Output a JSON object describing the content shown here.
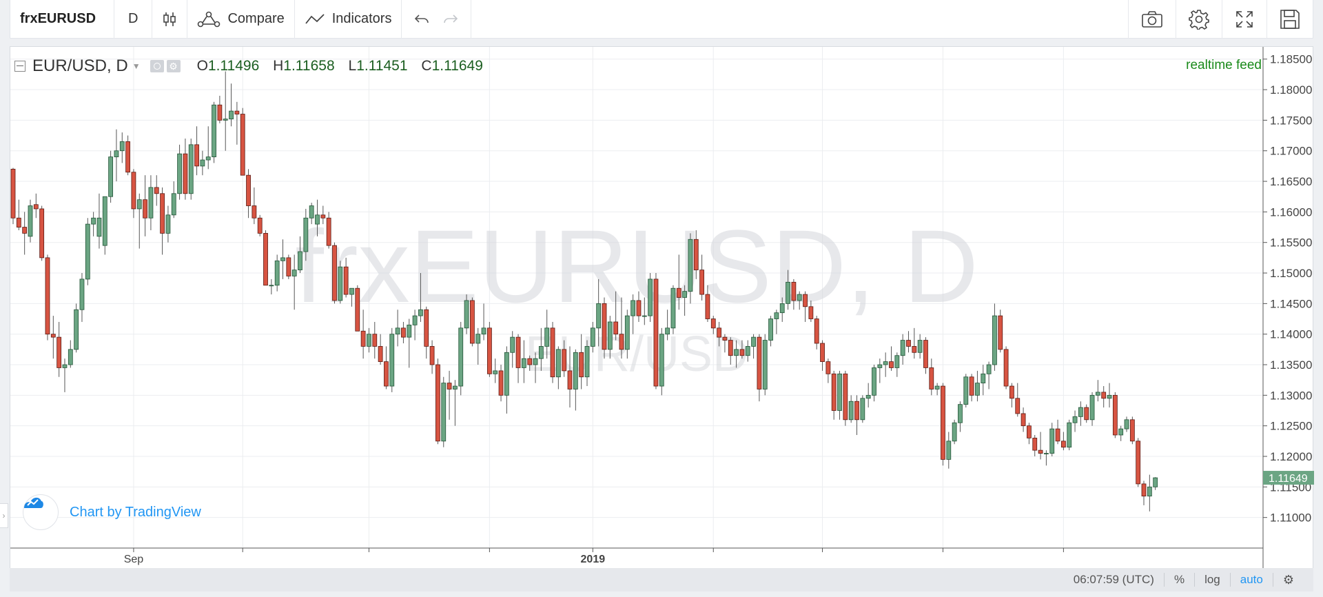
{
  "toolbar": {
    "symbol": "frxEURUSD",
    "interval": "D",
    "compare_label": "Compare",
    "indicators_label": "Indicators",
    "icons": [
      "candles-icon",
      "compare-icon",
      "indicators-icon",
      "undo-icon",
      "redo-icon",
      "camera-icon",
      "gear-icon",
      "fullscreen-icon",
      "save-icon"
    ]
  },
  "legend": {
    "title": "EUR/USD, D",
    "o_label": "O",
    "o_value": "1.11496",
    "h_label": "H",
    "h_value": "1.11658",
    "l_label": "L",
    "l_value": "1.11451",
    "c_label": "C",
    "c_value": "1.11649",
    "feed": "realtime feed"
  },
  "watermark": {
    "main": "frxEURUSD, D",
    "sub": "EUR/USD"
  },
  "brand": {
    "label": "Chart by TradingView"
  },
  "status": {
    "time": "06:07:59 (UTC)",
    "percent": "%",
    "log": "log",
    "auto": "auto"
  },
  "colors": {
    "up": "#6ba583",
    "down": "#d75442",
    "up_border": "#225437",
    "down_border": "#5b1a13",
    "price_tag": "#6ba583",
    "grid": "#ebedf0"
  },
  "chart_data": {
    "type": "candlestick",
    "title": "EUR/USD, D",
    "last_price_label": "1.11649",
    "ylim": [
      1.105,
      1.187
    ],
    "y_ticks": [
      "1.18500",
      "1.18000",
      "1.17500",
      "1.17000",
      "1.16500",
      "1.16000",
      "1.15500",
      "1.15000",
      "1.14500",
      "1.14000",
      "1.13500",
      "1.13000",
      "1.12500",
      "1.12000",
      "1.11500",
      "1.11000"
    ],
    "x_labels": [
      {
        "label": "Sep",
        "index": 21,
        "bold": false
      },
      {
        "label": "2019",
        "index": 101,
        "bold": true
      }
    ],
    "x_tick_indices": [
      21,
      40,
      62,
      83,
      101,
      122,
      141,
      162,
      183
    ],
    "ohlc": [
      [
        1.167,
        1.1672,
        1.158,
        1.159
      ],
      [
        1.159,
        1.162,
        1.157,
        1.1575
      ],
      [
        1.1575,
        1.16,
        1.153,
        1.1565
      ],
      [
        1.156,
        1.162,
        1.155,
        1.161
      ],
      [
        1.1612,
        1.163,
        1.159,
        1.1605
      ],
      [
        1.1605,
        1.161,
        1.152,
        1.1525
      ],
      [
        1.1525,
        1.153,
        1.139,
        1.14
      ],
      [
        1.14,
        1.143,
        1.136,
        1.1395
      ],
      [
        1.1395,
        1.142,
        1.133,
        1.1345
      ],
      [
        1.1345,
        1.136,
        1.1305,
        1.135
      ],
      [
        1.135,
        1.139,
        1.1345,
        1.1375
      ],
      [
        1.1375,
        1.145,
        1.137,
        1.144
      ],
      [
        1.144,
        1.15,
        1.142,
        1.149
      ],
      [
        1.149,
        1.159,
        1.148,
        1.158
      ],
      [
        1.158,
        1.16,
        1.156,
        1.159
      ],
      [
        1.156,
        1.163,
        1.154,
        1.159
      ],
      [
        1.1545,
        1.162,
        1.153,
        1.1625
      ],
      [
        1.1625,
        1.17,
        1.1615,
        1.169
      ],
      [
        1.169,
        1.1735,
        1.165,
        1.17
      ],
      [
        1.17,
        1.173,
        1.168,
        1.1715
      ],
      [
        1.1715,
        1.1725,
        1.166,
        1.1665
      ],
      [
        1.1665,
        1.167,
        1.159,
        1.1605
      ],
      [
        1.1605,
        1.163,
        1.154,
        1.162
      ],
      [
        1.162,
        1.166,
        1.156,
        1.159
      ],
      [
        1.159,
        1.166,
        1.157,
        1.164
      ],
      [
        1.164,
        1.166,
        1.161,
        1.163
      ],
      [
        1.163,
        1.164,
        1.153,
        1.1565
      ],
      [
        1.1565,
        1.161,
        1.155,
        1.1595
      ],
      [
        1.1595,
        1.165,
        1.159,
        1.163
      ],
      [
        1.163,
        1.171,
        1.162,
        1.1695
      ],
      [
        1.1695,
        1.172,
        1.162,
        1.163
      ],
      [
        1.163,
        1.172,
        1.162,
        1.171
      ],
      [
        1.171,
        1.174,
        1.166,
        1.1675
      ],
      [
        1.1675,
        1.17,
        1.166,
        1.1685
      ],
      [
        1.1685,
        1.174,
        1.167,
        1.169
      ],
      [
        1.169,
        1.178,
        1.168,
        1.1775
      ],
      [
        1.1775,
        1.179,
        1.1745,
        1.175
      ],
      [
        1.175,
        1.183,
        1.17,
        1.1752
      ],
      [
        1.1752,
        1.181,
        1.174,
        1.1765
      ],
      [
        1.1765,
        1.178,
        1.171,
        1.176
      ],
      [
        1.176,
        1.177,
        1.166,
        1.166
      ],
      [
        1.166,
        1.167,
        1.159,
        1.161
      ],
      [
        1.161,
        1.164,
        1.158,
        1.159
      ],
      [
        1.159,
        1.1595,
        1.156,
        1.1565
      ],
      [
        1.1565,
        1.157,
        1.148,
        1.148
      ],
      [
        1.148,
        1.149,
        1.1465,
        1.148
      ],
      [
        1.148,
        1.153,
        1.147,
        1.152
      ],
      [
        1.152,
        1.1555,
        1.149,
        1.1525
      ],
      [
        1.1525,
        1.153,
        1.149,
        1.1495
      ],
      [
        1.1495,
        1.153,
        1.144,
        1.1505
      ],
      [
        1.1505,
        1.156,
        1.15,
        1.1535
      ],
      [
        1.1535,
        1.1605,
        1.152,
        1.159
      ],
      [
        1.159,
        1.1615,
        1.158,
        1.161
      ],
      [
        1.158,
        1.162,
        1.156,
        1.1595
      ],
      [
        1.1595,
        1.161,
        1.158,
        1.159
      ],
      [
        1.159,
        1.16,
        1.154,
        1.1545
      ],
      [
        1.1545,
        1.155,
        1.145,
        1.1455
      ],
      [
        1.1455,
        1.152,
        1.145,
        1.151
      ],
      [
        1.151,
        1.1525,
        1.146,
        1.1465
      ],
      [
        1.1465,
        1.147,
        1.1445,
        1.1475
      ],
      [
        1.1475,
        1.148,
        1.1405,
        1.1405
      ],
      [
        1.1405,
        1.144,
        1.136,
        1.138
      ],
      [
        1.138,
        1.141,
        1.137,
        1.14
      ],
      [
        1.14,
        1.142,
        1.136,
        1.138
      ],
      [
        1.138,
        1.14,
        1.135,
        1.1355
      ],
      [
        1.1355,
        1.138,
        1.131,
        1.1315
      ],
      [
        1.1315,
        1.141,
        1.1305,
        1.14
      ],
      [
        1.14,
        1.144,
        1.138,
        1.141
      ],
      [
        1.141,
        1.142,
        1.1385,
        1.1395
      ],
      [
        1.1395,
        1.1425,
        1.1345,
        1.1415
      ],
      [
        1.1415,
        1.144,
        1.139,
        1.143
      ],
      [
        1.143,
        1.15,
        1.142,
        1.144
      ],
      [
        1.144,
        1.1445,
        1.136,
        1.138
      ],
      [
        1.138,
        1.139,
        1.1335,
        1.135
      ],
      [
        1.135,
        1.136,
        1.122,
        1.1225
      ],
      [
        1.1225,
        1.133,
        1.1215,
        1.132
      ],
      [
        1.132,
        1.134,
        1.126,
        1.131
      ],
      [
        1.131,
        1.1325,
        1.125,
        1.1315
      ],
      [
        1.1315,
        1.142,
        1.13,
        1.141
      ],
      [
        1.141,
        1.1465,
        1.14,
        1.1455
      ],
      [
        1.1455,
        1.146,
        1.138,
        1.1385
      ],
      [
        1.1385,
        1.141,
        1.135,
        1.14
      ],
      [
        1.14,
        1.145,
        1.139,
        1.141
      ],
      [
        1.141,
        1.142,
        1.133,
        1.1335
      ],
      [
        1.1335,
        1.136,
        1.132,
        1.134
      ],
      [
        1.134,
        1.135,
        1.129,
        1.13
      ],
      [
        1.13,
        1.138,
        1.127,
        1.137
      ],
      [
        1.137,
        1.1405,
        1.1345,
        1.1395
      ],
      [
        1.1395,
        1.14,
        1.132,
        1.1345
      ],
      [
        1.1345,
        1.139,
        1.132,
        1.136
      ],
      [
        1.136,
        1.1365,
        1.134,
        1.135
      ],
      [
        1.135,
        1.137,
        1.132,
        1.136
      ],
      [
        1.136,
        1.141,
        1.134,
        1.138
      ],
      [
        1.138,
        1.144,
        1.136,
        1.141
      ],
      [
        1.141,
        1.142,
        1.132,
        1.133
      ],
      [
        1.133,
        1.138,
        1.131,
        1.1375
      ],
      [
        1.1375,
        1.139,
        1.133,
        1.134
      ],
      [
        1.134,
        1.138,
        1.128,
        1.131
      ],
      [
        1.131,
        1.1375,
        1.1275,
        1.137
      ],
      [
        1.137,
        1.14,
        1.131,
        1.133
      ],
      [
        1.133,
        1.139,
        1.1315,
        1.138
      ],
      [
        1.138,
        1.142,
        1.137,
        1.141
      ],
      [
        1.141,
        1.149,
        1.138,
        1.145
      ],
      [
        1.145,
        1.146,
        1.136,
        1.1375
      ],
      [
        1.1375,
        1.143,
        1.136,
        1.142
      ],
      [
        1.142,
        1.147,
        1.139,
        1.14
      ],
      [
        1.14,
        1.146,
        1.136,
        1.1375
      ],
      [
        1.1375,
        1.144,
        1.136,
        1.143
      ],
      [
        1.143,
        1.1465,
        1.14,
        1.1455
      ],
      [
        1.1455,
        1.147,
        1.142,
        1.143
      ],
      [
        1.143,
        1.146,
        1.1415,
        1.143
      ],
      [
        1.143,
        1.15,
        1.142,
        1.149
      ],
      [
        1.149,
        1.15,
        1.131,
        1.1315
      ],
      [
        1.1315,
        1.141,
        1.13,
        1.14
      ],
      [
        1.14,
        1.144,
        1.139,
        1.141
      ],
      [
        1.141,
        1.148,
        1.14,
        1.1475
      ],
      [
        1.1475,
        1.153,
        1.144,
        1.146
      ],
      [
        1.146,
        1.148,
        1.143,
        1.147
      ],
      [
        1.147,
        1.1565,
        1.145,
        1.1555
      ],
      [
        1.1555,
        1.157,
        1.149,
        1.1505
      ],
      [
        1.1505,
        1.153,
        1.1455,
        1.1465
      ],
      [
        1.1465,
        1.148,
        1.142,
        1.1425
      ],
      [
        1.1425,
        1.143,
        1.14,
        1.141
      ],
      [
        1.141,
        1.142,
        1.138,
        1.1395
      ],
      [
        1.1395,
        1.14,
        1.137,
        1.139
      ],
      [
        1.139,
        1.1395,
        1.135,
        1.1365
      ],
      [
        1.1365,
        1.139,
        1.1345,
        1.1375
      ],
      [
        1.1375,
        1.139,
        1.136,
        1.1365
      ],
      [
        1.1365,
        1.139,
        1.1355,
        1.138
      ],
      [
        1.138,
        1.14,
        1.136,
        1.1395
      ],
      [
        1.1395,
        1.14,
        1.129,
        1.131
      ],
      [
        1.131,
        1.14,
        1.13,
        1.139
      ],
      [
        1.139,
        1.143,
        1.138,
        1.1425
      ],
      [
        1.1425,
        1.144,
        1.14,
        1.1435
      ],
      [
        1.1435,
        1.146,
        1.142,
        1.145
      ],
      [
        1.145,
        1.1505,
        1.144,
        1.1485
      ],
      [
        1.1485,
        1.149,
        1.144,
        1.1455
      ],
      [
        1.1455,
        1.147,
        1.144,
        1.1465
      ],
      [
        1.1465,
        1.147,
        1.142,
        1.1445
      ],
      [
        1.1445,
        1.1455,
        1.142,
        1.1425
      ],
      [
        1.1425,
        1.143,
        1.1375,
        1.1385
      ],
      [
        1.1385,
        1.139,
        1.134,
        1.1355
      ],
      [
        1.1355,
        1.136,
        1.132,
        1.1335
      ],
      [
        1.1335,
        1.134,
        1.126,
        1.1275
      ],
      [
        1.1275,
        1.134,
        1.126,
        1.1335
      ],
      [
        1.1335,
        1.134,
        1.125,
        1.126
      ],
      [
        1.126,
        1.13,
        1.1255,
        1.129
      ],
      [
        1.129,
        1.13,
        1.1235,
        1.126
      ],
      [
        1.126,
        1.13,
        1.1255,
        1.1295
      ],
      [
        1.1295,
        1.132,
        1.128,
        1.13
      ],
      [
        1.13,
        1.135,
        1.129,
        1.1345
      ],
      [
        1.1345,
        1.136,
        1.132,
        1.135
      ],
      [
        1.135,
        1.137,
        1.133,
        1.1355
      ],
      [
        1.1355,
        1.138,
        1.134,
        1.1345
      ],
      [
        1.1345,
        1.137,
        1.133,
        1.1365
      ],
      [
        1.1365,
        1.14,
        1.135,
        1.139
      ],
      [
        1.139,
        1.1405,
        1.137,
        1.138
      ],
      [
        1.138,
        1.141,
        1.136,
        1.137
      ],
      [
        1.137,
        1.14,
        1.136,
        1.139
      ],
      [
        1.139,
        1.1395,
        1.1335,
        1.1345
      ],
      [
        1.1345,
        1.136,
        1.13,
        1.131
      ],
      [
        1.131,
        1.132,
        1.13,
        1.1315
      ],
      [
        1.1315,
        1.132,
        1.1185,
        1.1195
      ],
      [
        1.1195,
        1.124,
        1.118,
        1.1225
      ],
      [
        1.1225,
        1.126,
        1.122,
        1.1255
      ],
      [
        1.1255,
        1.129,
        1.124,
        1.1285
      ],
      [
        1.1285,
        1.1335,
        1.128,
        1.133
      ],
      [
        1.133,
        1.1335,
        1.129,
        1.13
      ],
      [
        1.13,
        1.134,
        1.129,
        1.132
      ],
      [
        1.132,
        1.135,
        1.13,
        1.1335
      ],
      [
        1.1335,
        1.1355,
        1.131,
        1.135
      ],
      [
        1.135,
        1.145,
        1.134,
        1.143
      ],
      [
        1.143,
        1.144,
        1.137,
        1.1375
      ],
      [
        1.1375,
        1.138,
        1.131,
        1.1315
      ],
      [
        1.1315,
        1.132,
        1.128,
        1.1295
      ],
      [
        1.1295,
        1.132,
        1.1265,
        1.127
      ],
      [
        1.127,
        1.128,
        1.124,
        1.125
      ],
      [
        1.125,
        1.1255,
        1.122,
        1.123
      ],
      [
        1.123,
        1.1235,
        1.12,
        1.121
      ],
      [
        1.121,
        1.124,
        1.1195,
        1.1205
      ],
      [
        1.1205,
        1.121,
        1.1185,
        1.1205
      ],
      [
        1.1205,
        1.1255,
        1.12,
        1.1245
      ],
      [
        1.1245,
        1.126,
        1.122,
        1.1225
      ],
      [
        1.1225,
        1.124,
        1.121,
        1.1215
      ],
      [
        1.1215,
        1.126,
        1.121,
        1.1255
      ],
      [
        1.1255,
        1.1275,
        1.124,
        1.1265
      ],
      [
        1.1265,
        1.129,
        1.125,
        1.128
      ],
      [
        1.128,
        1.1285,
        1.1255,
        1.126
      ],
      [
        1.126,
        1.1305,
        1.125,
        1.13
      ],
      [
        1.13,
        1.1325,
        1.129,
        1.1305
      ],
      [
        1.1305,
        1.1315,
        1.128,
        1.1295
      ],
      [
        1.1295,
        1.132,
        1.128,
        1.13
      ],
      [
        1.13,
        1.1305,
        1.123,
        1.1235
      ],
      [
        1.1235,
        1.125,
        1.1225,
        1.1245
      ],
      [
        1.1245,
        1.1265,
        1.124,
        1.126
      ],
      [
        1.126,
        1.1265,
        1.122,
        1.1225
      ],
      [
        1.1225,
        1.123,
        1.115,
        1.1155
      ],
      [
        1.1155,
        1.116,
        1.112,
        1.1135
      ],
      [
        1.1135,
        1.117,
        1.111,
        1.115
      ],
      [
        1.115,
        1.1166,
        1.1145,
        1.1165
      ]
    ]
  }
}
